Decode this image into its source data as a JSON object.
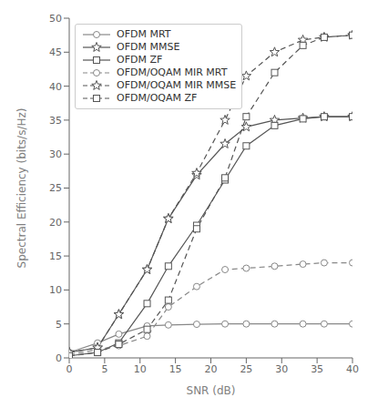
{
  "chart_data": {
    "type": "line",
    "xlabel": "SNR (dB)",
    "ylabel": "Spectral Efficiency (bits/s/Hz)",
    "x": [
      0,
      4,
      7,
      11,
      14,
      18,
      22,
      25,
      29,
      33,
      36,
      40
    ],
    "xlim": [
      0,
      40
    ],
    "ylim": [
      0,
      50
    ],
    "xticks": [
      0,
      5,
      10,
      15,
      20,
      25,
      30,
      35,
      40
    ],
    "yticks": [
      0,
      5,
      10,
      15,
      20,
      25,
      30,
      35,
      40,
      45,
      50
    ],
    "grid": false,
    "legend": "upper left",
    "series": [
      {
        "name": "OFDM MRT",
        "color": "#888888",
        "marker": "circle",
        "line_style": "solid",
        "values": [
          0.8,
          2.2,
          3.5,
          4.7,
          4.85,
          4.95,
          5.0,
          5.0,
          5.0,
          5.0,
          5.0,
          5.0
        ]
      },
      {
        "name": "OFDM MMSE",
        "color": "#555555",
        "marker": "star",
        "line_style": "solid",
        "values": [
          0.8,
          1.5,
          6.4,
          13.0,
          20.5,
          26.9,
          31.5,
          34.0,
          35.0,
          35.3,
          35.5,
          35.5
        ]
      },
      {
        "name": "OFDM ZF",
        "color": "#555555",
        "marker": "square",
        "line_style": "solid",
        "values": [
          0.3,
          0.8,
          2.2,
          8.0,
          13.5,
          19.5,
          26.2,
          31.2,
          34.2,
          35.2,
          35.5,
          35.5
        ]
      },
      {
        "name": "OFDM/OQAM MIR MRT",
        "color": "#888888",
        "marker": "circle",
        "line_style": "dashed",
        "values": [
          0.5,
          1.2,
          1.8,
          3.2,
          7.5,
          10.5,
          13.0,
          13.2,
          13.5,
          13.8,
          14.0,
          14.0
        ]
      },
      {
        "name": "OFDM/OQAM MIR MMSE",
        "color": "#555555",
        "marker": "star",
        "line_style": "dashed",
        "values": [
          0.8,
          1.5,
          6.4,
          13.0,
          20.5,
          27.2,
          35.0,
          41.5,
          45.0,
          46.8,
          47.2,
          47.5
        ]
      },
      {
        "name": "OFDM/OQAM ZF",
        "color": "#555555",
        "marker": "square",
        "line_style": "dashed",
        "values": [
          0.3,
          0.8,
          2.0,
          4.2,
          8.5,
          19.0,
          26.5,
          35.5,
          42.0,
          46.0,
          47.2,
          47.5
        ]
      }
    ]
  }
}
